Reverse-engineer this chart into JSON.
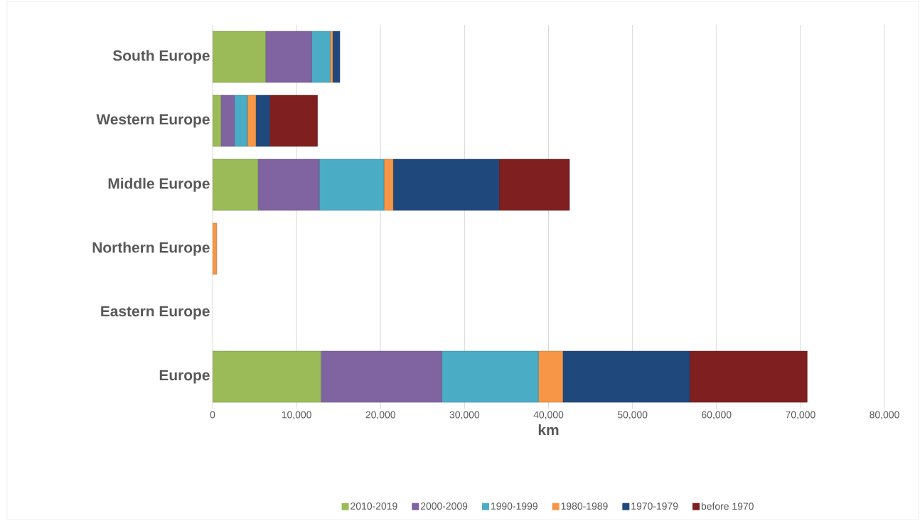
{
  "chart_data": {
    "type": "bar",
    "orientation": "horizontal",
    "stacked": true,
    "categories": [
      "South Europe",
      "Western Europe",
      "Middle Europe",
      "Northern Europe",
      "Eastern Europe",
      "Europe"
    ],
    "series": [
      {
        "name": "2010-2019",
        "color": "#9bbb59",
        "values": [
          6300,
          1000,
          5400,
          0,
          0,
          12900
        ]
      },
      {
        "name": "2000-2009",
        "color": "#8064a2",
        "values": [
          5500,
          1600,
          7300,
          0,
          0,
          14400
        ]
      },
      {
        "name": "1990-1999",
        "color": "#4bacc6",
        "values": [
          2200,
          1550,
          7700,
          0,
          0,
          11500
        ]
      },
      {
        "name": "1980-1989",
        "color": "#f79646",
        "values": [
          300,
          1000,
          1100,
          500,
          0,
          2900
        ]
      },
      {
        "name": "1970-1979",
        "color": "#1f497d",
        "values": [
          850,
          1650,
          12600,
          0,
          0,
          15100
        ]
      },
      {
        "name": "before 1970",
        "color": "#7f1f1f",
        "values": [
          0,
          5700,
          8400,
          0,
          0,
          14000
        ]
      }
    ],
    "xlabel": "km",
    "xlim": [
      0,
      80000
    ],
    "xticks": [
      {
        "value": 0,
        "label": "0"
      },
      {
        "value": 10000,
        "label": "10,000"
      },
      {
        "value": 20000,
        "label": "20,000"
      },
      {
        "value": 30000,
        "label": "30,000"
      },
      {
        "value": 40000,
        "label": "40,000"
      },
      {
        "value": 50000,
        "label": "50,000"
      },
      {
        "value": 60000,
        "label": "60,000"
      },
      {
        "value": 70000,
        "label": "70,000"
      },
      {
        "value": 80000,
        "label": "80,000"
      }
    ],
    "grid": "x",
    "legend": "bottom"
  }
}
